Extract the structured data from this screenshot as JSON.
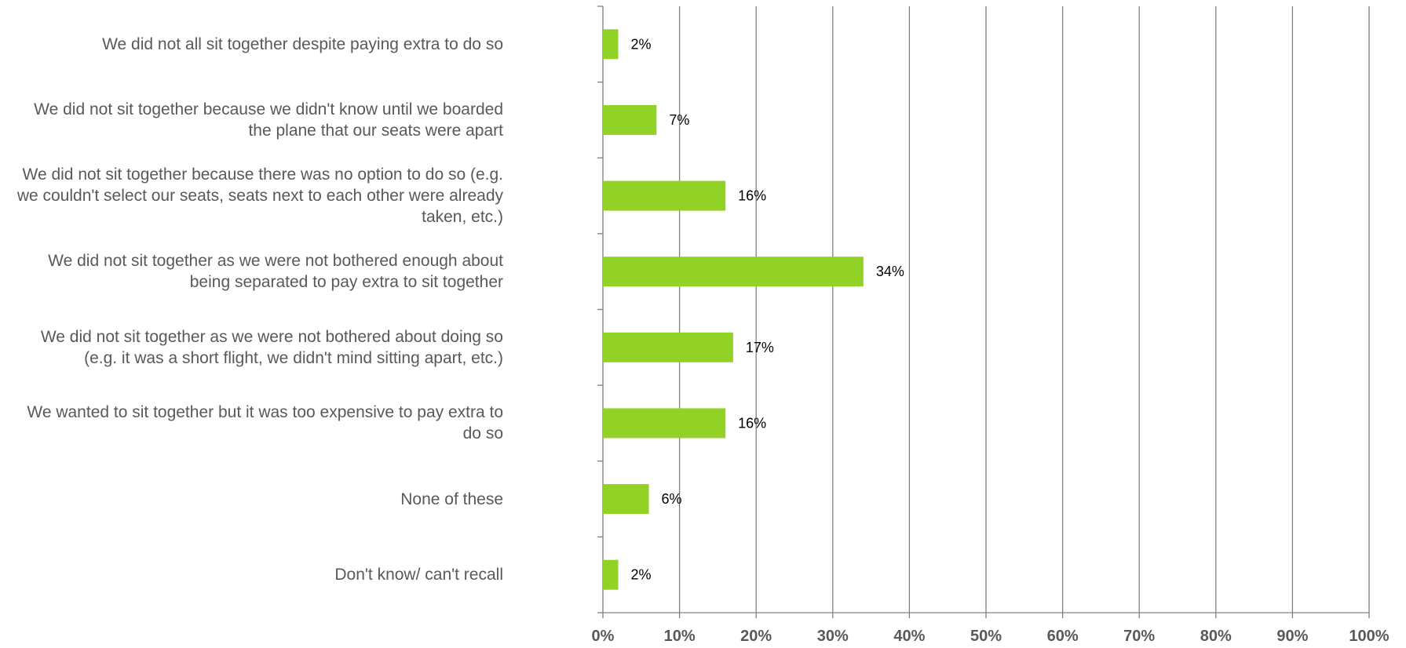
{
  "chart_data": {
    "type": "bar",
    "orientation": "horizontal",
    "categories": [
      [
        "We did not all sit together despite paying extra to do so"
      ],
      [
        "We did not sit together because we didn't know until we boarded",
        "the plane that our seats were apart"
      ],
      [
        "We did not sit together because there was no option to do so (e.g.",
        "we couldn't select our seats, seats next to each other were already",
        "taken, etc.)"
      ],
      [
        "We did not sit together as we were not bothered enough about",
        "being separated to pay extra to sit together"
      ],
      [
        "We did not sit together as we were not bothered about doing so",
        "(e.g. it was a short flight, we didn't mind sitting apart, etc.)"
      ],
      [
        "We wanted to sit together but it was too expensive to pay extra to",
        "do so"
      ],
      [
        "None of these"
      ],
      [
        "Don't know/ can't recall"
      ]
    ],
    "values": [
      2,
      7,
      16,
      34,
      17,
      16,
      6,
      2
    ],
    "value_labels": [
      "2%",
      "7%",
      "16%",
      "34%",
      "17%",
      "16%",
      "6%",
      "2%"
    ],
    "xlim": [
      0,
      100
    ],
    "x_ticks": [
      "0%",
      "10%",
      "20%",
      "30%",
      "40%",
      "50%",
      "60%",
      "70%",
      "80%",
      "90%",
      "100%"
    ],
    "grid": true,
    "legend": "none",
    "colors": {
      "bar": "#92d126",
      "grid": "#808080",
      "label": "#595959",
      "data_label": "#000000"
    }
  }
}
